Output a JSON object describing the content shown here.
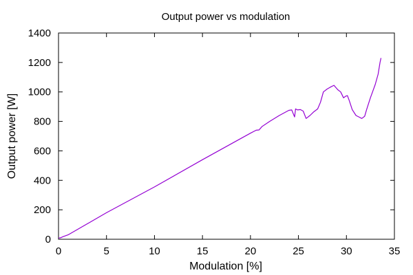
{
  "chart_data": {
    "type": "line",
    "title": "Output power vs modulation",
    "xlabel": "Modulation [%]",
    "ylabel": "Output power [W]",
    "xlim": [
      0,
      35
    ],
    "ylim": [
      0,
      1400
    ],
    "xticks": [
      0,
      5,
      10,
      15,
      20,
      25,
      30,
      35
    ],
    "yticks": [
      0,
      200,
      400,
      600,
      800,
      1000,
      1200,
      1400
    ],
    "grid": false,
    "series": [
      {
        "color": "#9400d3",
        "x": [
          0,
          0.2,
          0.5,
          1,
          5,
          10,
          15,
          20,
          20.6,
          20.9,
          21.0,
          21.2,
          22,
          23,
          24,
          24.3,
          24.6,
          24.7,
          24.9,
          25.2,
          25.5,
          25.8,
          26.2,
          26.6,
          27.0,
          27.3,
          27.6,
          28.0,
          28.4,
          28.7,
          28.9,
          29.1,
          29.4,
          29.7,
          29.9,
          30.1,
          30.3,
          30.6,
          31.0,
          31.3,
          31.6,
          31.9,
          32.1,
          32.5,
          33.0,
          33.3,
          33.5,
          33.6
        ],
        "y": [
          8,
          10,
          18,
          30,
          180,
          355,
          540,
          720,
          740,
          742,
          750,
          765,
          800,
          840,
          875,
          878,
          830,
          885,
          878,
          880,
          870,
          820,
          840,
          865,
          885,
          930,
          1000,
          1020,
          1035,
          1045,
          1030,
          1015,
          1000,
          960,
          970,
          975,
          940,
          880,
          840,
          830,
          820,
          835,
          880,
          960,
          1050,
          1120,
          1200,
          1230
        ]
      }
    ]
  }
}
